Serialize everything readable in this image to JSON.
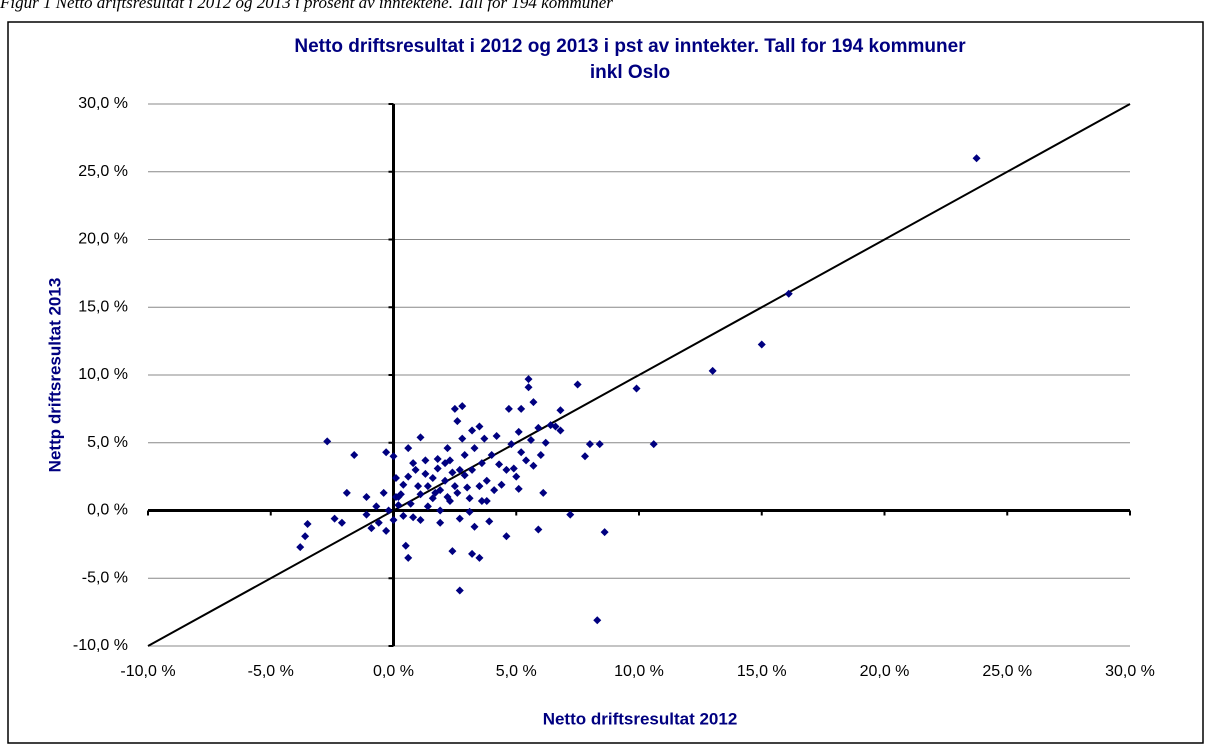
{
  "chart_data": {
    "type": "scatter",
    "caption": "Figur 1 Netto driftsresultat i 2012 og 2013 i prosent av inntektene. Tall for 194 kommuner",
    "title": [
      "Netto driftsresultat i 2012 og 2013 i pst av inntekter. Tall for 194 kommuner",
      "inkl Oslo"
    ],
    "x_label": "Netto driftsresultat 2012",
    "y_label": "Nettp driftsresultat 2013",
    "color": "#000080",
    "grid": "y",
    "xlim": [
      -10,
      30
    ],
    "ylim": [
      -10,
      30
    ],
    "xticks": [
      {
        "value": -10,
        "label": "-10,0 %"
      },
      {
        "value": -5,
        "label": "-5,0 %"
      },
      {
        "value": 0,
        "label": "0,0 %"
      },
      {
        "value": 5,
        "label": "5,0 %"
      },
      {
        "value": 10,
        "label": "10,0 %"
      },
      {
        "value": 15,
        "label": "15,0 %"
      },
      {
        "value": 20,
        "label": "20,0 %"
      },
      {
        "value": 25,
        "label": "25,0 %"
      },
      {
        "value": 30,
        "label": "30,0 %"
      }
    ],
    "yticks": [
      {
        "value": -10,
        "label": "-10,0 %"
      },
      {
        "value": -5,
        "label": "-5,0 %"
      },
      {
        "value": 0,
        "label": "0,0 %"
      },
      {
        "value": 5,
        "label": "5,0 %"
      },
      {
        "value": 10,
        "label": "10,0 %"
      },
      {
        "value": 15,
        "label": "15,0 %"
      },
      {
        "value": 20,
        "label": "20,0 %"
      },
      {
        "value": 25,
        "label": "25,0 %"
      },
      {
        "value": 30,
        "label": "30,0 %"
      }
    ],
    "reference_line": {
      "x": [
        -10,
        30
      ],
      "values": [
        -10,
        30
      ],
      "color": "#000000"
    },
    "x": [
      23.75,
      16.1,
      15.0,
      13.0,
      9.9,
      10.6,
      7.5,
      5.5,
      5.5,
      5.7,
      6.8,
      6.6,
      6.8,
      8.0,
      8.4,
      7.8,
      8.6,
      8.3,
      7.2,
      5.9,
      6.0,
      6.1,
      5.9,
      4.6,
      3.9,
      2.7,
      3.3,
      3.2,
      3.5,
      2.7,
      2.4,
      1.9,
      1.1,
      0.4,
      0.5,
      0.6,
      -3.8,
      -3.6,
      -3.5,
      -2.7,
      -1.6,
      -2.4,
      -1.9,
      -2.1,
      -1.1,
      -0.9,
      -0.6,
      -1.1,
      -0.4,
      -0.3,
      0.0,
      0.1,
      0.1,
      0.2,
      -0.2,
      0.0,
      0.4,
      0.6,
      0.6,
      0.8,
      1.1,
      1.3,
      1.1,
      1.4,
      1.6,
      1.8,
      1.9,
      2.1,
      2.2,
      2.1,
      2.3,
      2.4,
      2.5,
      2.8,
      2.6,
      2.8,
      2.9,
      3.0,
      3.1,
      3.2,
      3.3,
      3.5,
      3.6,
      3.7,
      3.8,
      4.0,
      4.1,
      4.2,
      4.3,
      4.4,
      4.6,
      4.7,
      4.8,
      4.9,
      5.1,
      5.2,
      5.2,
      5.4,
      5.6,
      5.7,
      6.2,
      6.4,
      2.2,
      1.6,
      1.0,
      0.9,
      0.3,
      -0.7,
      0.7,
      2.5,
      2.7,
      3.2,
      3.5,
      3.8,
      5.1,
      5.0,
      3.6,
      3.1,
      1.9,
      0.8,
      1.4,
      1.7,
      2.6,
      2.9,
      2.3,
      1.8,
      1.3,
      -0.3,
      0.2
    ],
    "values": [
      26.0,
      16.0,
      12.25,
      10.3,
      9.0,
      4.9,
      9.3,
      9.7,
      9.1,
      8.0,
      7.4,
      6.2,
      5.9,
      4.9,
      4.9,
      4.0,
      -1.6,
      -8.1,
      -0.3,
      6.1,
      4.1,
      1.3,
      -1.4,
      -1.9,
      -0.8,
      -0.6,
      -1.2,
      -3.2,
      -3.5,
      -5.9,
      -3.0,
      -0.9,
      -0.7,
      -0.4,
      -2.6,
      -3.5,
      -2.7,
      -1.9,
      -1.0,
      5.1,
      4.1,
      -0.6,
      1.3,
      -0.9,
      1.0,
      -1.3,
      -0.9,
      -0.3,
      1.3,
      4.3,
      4.0,
      2.4,
      1.0,
      0.4,
      0.0,
      -0.7,
      1.9,
      4.6,
      2.5,
      3.5,
      5.4,
      3.7,
      1.2,
      1.8,
      0.9,
      3.1,
      1.5,
      3.5,
      4.6,
      2.2,
      0.7,
      2.8,
      7.5,
      7.7,
      6.6,
      5.3,
      4.1,
      1.7,
      0.9,
      5.9,
      4.6,
      6.2,
      3.5,
      5.3,
      2.2,
      4.1,
      1.5,
      5.5,
      3.4,
      1.9,
      3.0,
      7.5,
      4.9,
      3.1,
      5.8,
      4.3,
      7.5,
      3.7,
      5.2,
      3.3,
      5.0,
      6.3,
      1.0,
      2.4,
      1.8,
      3.0,
      1.2,
      0.3,
      0.5,
      1.8,
      3.0,
      3.0,
      1.8,
      0.7,
      1.6,
      2.5,
      0.7,
      -0.1,
      0.0,
      -0.5,
      0.3,
      1.3,
      1.3,
      2.6,
      3.7,
      3.8,
      2.7,
      -1.5,
      1.0
    ]
  }
}
